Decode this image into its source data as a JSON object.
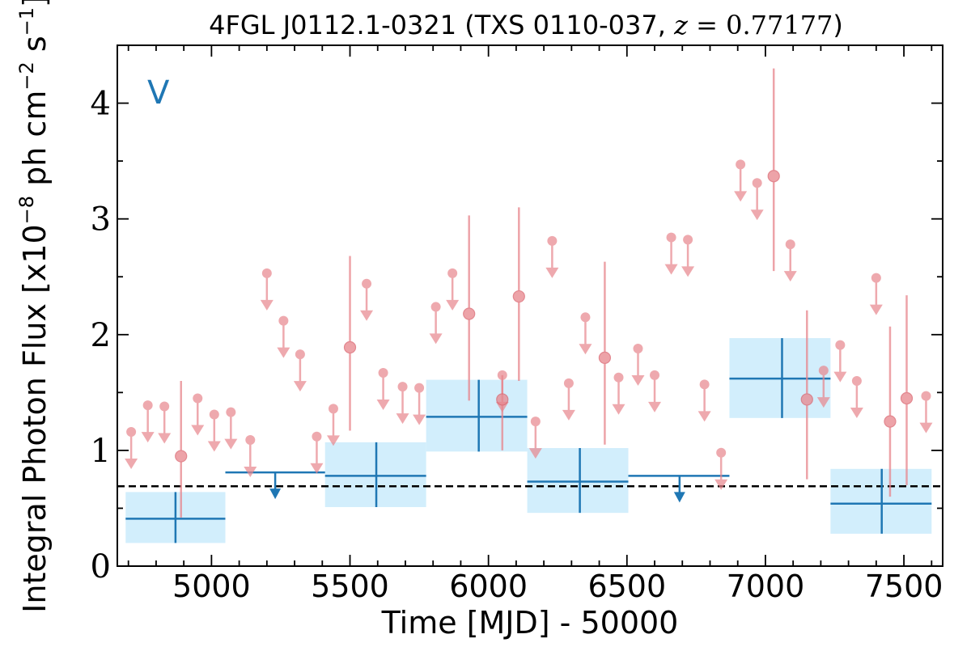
{
  "chart_data": {
    "type": "scatter",
    "title": {
      "main": "4FGL J0112.1-0321 (TXS 0110-037, ",
      "var": "z",
      "eq": " = ",
      "val": "0.77177",
      "close": ")"
    },
    "xlabel": "Time [MJD] - 50000",
    "ylabel": {
      "pre": "Integral Photon Flux [x10",
      "exp1": "−8",
      "mid": " ph cm",
      "exp2": "−2",
      "mid2": " s",
      "exp3": "−1",
      "post": "]"
    },
    "panel_label": "V",
    "xlim": [
      4660,
      7640
    ],
    "ylim": [
      0,
      4.5
    ],
    "x_ticks": [
      5000,
      5500,
      6000,
      6500,
      7000,
      7500
    ],
    "x_tick_labels": [
      "5000",
      "5500",
      "6000",
      "6500",
      "7000",
      "7500"
    ],
    "y_ticks": [
      0,
      1,
      2,
      3,
      4
    ],
    "y_tick_labels": [
      "0",
      "1",
      "2",
      "3",
      "4"
    ],
    "reference_line": {
      "y": 0.69,
      "style": "dashed",
      "color": "#000000"
    },
    "colors": {
      "fine_bins": "#e8858c",
      "coarse_bins": "#1f77b4",
      "coarse_box": "#d2eefc"
    },
    "fine_bins_upper_limits": [
      {
        "x": 4710,
        "y": 1.16
      },
      {
        "x": 4770,
        "y": 1.39
      },
      {
        "x": 4830,
        "y": 1.38
      },
      {
        "x": 4950,
        "y": 1.45
      },
      {
        "x": 5010,
        "y": 1.31
      },
      {
        "x": 5070,
        "y": 1.33
      },
      {
        "x": 5140,
        "y": 1.09
      },
      {
        "x": 5200,
        "y": 2.53
      },
      {
        "x": 5260,
        "y": 2.12
      },
      {
        "x": 5320,
        "y": 1.83
      },
      {
        "x": 5380,
        "y": 1.12
      },
      {
        "x": 5440,
        "y": 1.36
      },
      {
        "x": 5560,
        "y": 2.44
      },
      {
        "x": 5620,
        "y": 1.67
      },
      {
        "x": 5690,
        "y": 1.55
      },
      {
        "x": 5750,
        "y": 1.54
      },
      {
        "x": 5810,
        "y": 2.24
      },
      {
        "x": 5870,
        "y": 2.53
      },
      {
        "x": 6050,
        "y": 1.65
      },
      {
        "x": 6170,
        "y": 1.25
      },
      {
        "x": 6230,
        "y": 2.81
      },
      {
        "x": 6290,
        "y": 1.58
      },
      {
        "x": 6350,
        "y": 2.15
      },
      {
        "x": 6470,
        "y": 1.63
      },
      {
        "x": 6540,
        "y": 1.88
      },
      {
        "x": 6600,
        "y": 1.65
      },
      {
        "x": 6660,
        "y": 2.84
      },
      {
        "x": 6720,
        "y": 2.82
      },
      {
        "x": 6780,
        "y": 1.57
      },
      {
        "x": 6840,
        "y": 0.98
      },
      {
        "x": 6910,
        "y": 3.47
      },
      {
        "x": 6970,
        "y": 3.31
      },
      {
        "x": 7090,
        "y": 2.78
      },
      {
        "x": 7210,
        "y": 1.69
      },
      {
        "x": 7270,
        "y": 1.91
      },
      {
        "x": 7330,
        "y": 1.6
      },
      {
        "x": 7400,
        "y": 2.49
      },
      {
        "x": 7580,
        "y": 1.47
      }
    ],
    "fine_bins_detections": [
      {
        "x": 4890,
        "y": 0.95,
        "ylo": 0.42,
        "yhi": 1.6
      },
      {
        "x": 5500,
        "y": 1.89,
        "ylo": 1.17,
        "yhi": 2.68
      },
      {
        "x": 5930,
        "y": 2.18,
        "ylo": 1.43,
        "yhi": 3.03
      },
      {
        "x": 6050,
        "y": 1.44,
        "ylo": 1.0,
        "yhi": 1.65
      },
      {
        "x": 6110,
        "y": 2.33,
        "ylo": 1.6,
        "yhi": 3.1
      },
      {
        "x": 6420,
        "y": 1.8,
        "ylo": 1.05,
        "yhi": 2.63
      },
      {
        "x": 7030,
        "y": 3.37,
        "ylo": 2.55,
        "yhi": 4.3
      },
      {
        "x": 7150,
        "y": 1.44,
        "ylo": 0.75,
        "yhi": 2.21
      },
      {
        "x": 7450,
        "y": 1.25,
        "ylo": 0.6,
        "yhi": 2.07
      },
      {
        "x": 7510,
        "y": 1.45,
        "ylo": 0.7,
        "yhi": 2.34
      }
    ],
    "coarse_bins_detections": [
      {
        "x0": 4690,
        "x1": 5050,
        "xc": 4870,
        "y": 0.41,
        "ylo": 0.2,
        "yhi": 0.64
      },
      {
        "x0": 5410,
        "x1": 5775,
        "xc": 5595,
        "y": 0.78,
        "ylo": 0.51,
        "yhi": 1.07
      },
      {
        "x0": 5775,
        "x1": 6140,
        "xc": 5965,
        "y": 1.29,
        "ylo": 0.99,
        "yhi": 1.61
      },
      {
        "x0": 6140,
        "x1": 6505,
        "xc": 6330,
        "y": 0.73,
        "ylo": 0.46,
        "yhi": 1.02
      },
      {
        "x0": 6870,
        "x1": 7235,
        "xc": 7060,
        "y": 1.62,
        "ylo": 1.28,
        "yhi": 1.97
      },
      {
        "x0": 7235,
        "x1": 7600,
        "xc": 7420,
        "y": 0.54,
        "ylo": 0.28,
        "yhi": 0.84
      }
    ],
    "coarse_bins_upper_limits": [
      {
        "x0": 5050,
        "x1": 5410,
        "xc": 5230,
        "y": 0.81
      },
      {
        "x0": 6505,
        "x1": 6870,
        "xc": 6690,
        "y": 0.78
      }
    ]
  }
}
